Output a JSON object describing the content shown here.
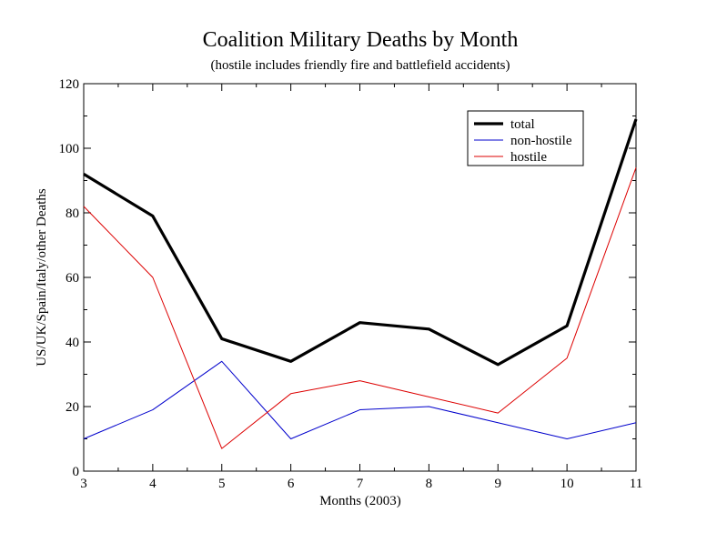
{
  "chart_data": {
    "type": "line",
    "title": "Coalition Military Deaths by Month",
    "subtitle": "(hostile includes friendly fire and battlefield accidents)",
    "xlabel": "Months (2003)",
    "ylabel": "US/UK/Spain/Italy/other Deaths",
    "x": [
      3,
      4,
      5,
      6,
      7,
      8,
      9,
      10,
      11
    ],
    "xlim": [
      3,
      11
    ],
    "ylim": [
      0,
      120
    ],
    "x_ticks": [
      "3",
      "4",
      "5",
      "6",
      "7",
      "8",
      "9",
      "10",
      "11"
    ],
    "y_ticks": [
      "0",
      "20",
      "40",
      "60",
      "80",
      "100",
      "120"
    ],
    "grid": false,
    "legend_position": "top-right",
    "series": [
      {
        "name": "total",
        "color": "#000000",
        "values": [
          92,
          79,
          41,
          34,
          46,
          44,
          33,
          45,
          109
        ]
      },
      {
        "name": "non-hostile",
        "color": "#0000cc",
        "values": [
          10,
          19,
          34,
          10,
          19,
          20,
          15,
          10,
          15
        ]
      },
      {
        "name": "hostile",
        "color": "#dd0000",
        "values": [
          82,
          60,
          7,
          24,
          28,
          23,
          18,
          35,
          94
        ]
      }
    ]
  }
}
